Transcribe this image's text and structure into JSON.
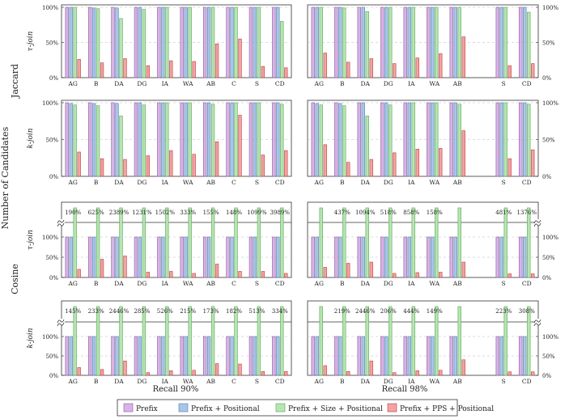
{
  "figure": {
    "ylabel_outer": "Number of Candidates",
    "row_group_labels": [
      "Jaccard",
      "Cosine"
    ],
    "panel_ylabels": [
      "τ-join",
      "k-join",
      "τ-join",
      "k-join"
    ],
    "column_xlabels": [
      "Recall 90%",
      "Recall 98%"
    ]
  },
  "legend": [
    {
      "label": "Prefix",
      "color": "#d9b3e6",
      "stroke": "#8a5a9e"
    },
    {
      "label": "Prefix + Positional",
      "color": "#a9c6e6",
      "stroke": "#4f7fb0"
    },
    {
      "label": "Prefix + Size + Positional",
      "color": "#b6e6b0",
      "stroke": "#5aa35a"
    },
    {
      "label": "Prefix + PPS + Positional",
      "color": "#f2a3a3",
      "stroke": "#c23a3a"
    }
  ],
  "chart_data": [
    {
      "type": "bar",
      "row": "Jaccard",
      "ylabel": "τ-join",
      "column": "Recall 90%",
      "categories": [
        "AG",
        "B",
        "DA",
        "DG",
        "IA",
        "WA",
        "AB",
        "C",
        "S",
        "CD"
      ],
      "ylim": [
        0,
        100
      ],
      "yticks": [
        "0%",
        "50%",
        "100%"
      ],
      "grid": true,
      "series": [
        {
          "name": "Prefix",
          "values": [
            100,
            100,
            100,
            100,
            100,
            100,
            100,
            100,
            100,
            100
          ]
        },
        {
          "name": "Prefix + Positional",
          "values": [
            100,
            99,
            99,
            100,
            100,
            100,
            100,
            100,
            100,
            100
          ]
        },
        {
          "name": "Prefix + Size + Positional",
          "values": [
            100,
            98,
            84,
            97,
            100,
            100,
            100,
            100,
            100,
            80
          ]
        },
        {
          "name": "Prefix + PPS + Positional",
          "values": [
            26,
            21,
            27,
            17,
            24,
            23,
            48,
            55,
            16,
            14
          ]
        }
      ]
    },
    {
      "type": "bar",
      "row": "Jaccard",
      "ylabel": "τ-join",
      "column": "Recall 98%",
      "categories": [
        "AG",
        "B",
        "DA",
        "DG",
        "IA",
        "WA",
        "AB",
        "",
        "S",
        "CD"
      ],
      "ylim": [
        0,
        100
      ],
      "yticks": [
        "0%",
        "50%",
        "100%"
      ],
      "grid": true,
      "series": [
        {
          "name": "Prefix",
          "values": [
            100,
            100,
            100,
            100,
            100,
            100,
            100,
            null,
            100,
            100
          ]
        },
        {
          "name": "Prefix + Positional",
          "values": [
            100,
            100,
            100,
            100,
            100,
            100,
            100,
            null,
            100,
            100
          ]
        },
        {
          "name": "Prefix + Size + Positional",
          "values": [
            100,
            99,
            94,
            100,
            100,
            100,
            100,
            null,
            100,
            93
          ]
        },
        {
          "name": "Prefix + PPS + Positional",
          "values": [
            35,
            22,
            27,
            20,
            28,
            34,
            58,
            null,
            17,
            20
          ]
        }
      ]
    },
    {
      "type": "bar",
      "row": "Jaccard",
      "ylabel": "k-join",
      "column": "Recall 90%",
      "categories": [
        "AG",
        "B",
        "DA",
        "DG",
        "IA",
        "WA",
        "AB",
        "C",
        "S",
        "CD"
      ],
      "ylim": [
        0,
        100
      ],
      "yticks": [
        "0%",
        "50%",
        "100%"
      ],
      "grid": true,
      "series": [
        {
          "name": "Prefix",
          "values": [
            100,
            100,
            100,
            100,
            100,
            100,
            100,
            100,
            100,
            100
          ]
        },
        {
          "name": "Prefix + Positional",
          "values": [
            99,
            99,
            99,
            100,
            100,
            100,
            100,
            100,
            100,
            100
          ]
        },
        {
          "name": "Prefix + Size + Positional",
          "values": [
            97,
            96,
            82,
            97,
            100,
            100,
            98,
            100,
            100,
            98
          ]
        },
        {
          "name": "Prefix + PPS + Positional",
          "values": [
            33,
            24,
            23,
            28,
            35,
            30,
            47,
            83,
            29,
            35
          ]
        }
      ]
    },
    {
      "type": "bar",
      "row": "Jaccard",
      "ylabel": "k-join",
      "column": "Recall 98%",
      "categories": [
        "AG",
        "B",
        "DA",
        "DG",
        "IA",
        "WA",
        "AB",
        "",
        "S",
        "CD"
      ],
      "ylim": [
        0,
        100
      ],
      "yticks": [
        "0%",
        "50%",
        "100%"
      ],
      "grid": true,
      "series": [
        {
          "name": "Prefix",
          "values": [
            100,
            100,
            100,
            100,
            100,
            100,
            100,
            null,
            100,
            100
          ]
        },
        {
          "name": "Prefix + Positional",
          "values": [
            99,
            99,
            100,
            100,
            100,
            100,
            100,
            null,
            100,
            100
          ]
        },
        {
          "name": "Prefix + Size + Positional",
          "values": [
            97,
            96,
            82,
            97,
            100,
            100,
            98,
            null,
            100,
            98
          ]
        },
        {
          "name": "Prefix + PPS + Positional",
          "values": [
            43,
            19,
            23,
            32,
            37,
            38,
            62,
            null,
            24,
            36
          ]
        }
      ]
    },
    {
      "type": "bar",
      "row": "Cosine",
      "ylabel": "τ-join",
      "column": "Recall 90%",
      "categories": [
        "AG",
        "B",
        "DA",
        "DG",
        "IA",
        "WA",
        "AB",
        "C",
        "S",
        "CD"
      ],
      "ylim": [
        0,
        150
      ],
      "yticks": [
        "0%",
        "50%",
        "100%"
      ],
      "grid": true,
      "axis_break": true,
      "overflow_labels": [
        "190%",
        "625%",
        "2389%",
        "1231%",
        "1502%",
        "333%",
        "155%",
        "148%",
        "1099%",
        "3989%"
      ],
      "series": [
        {
          "name": "Prefix",
          "values": [
            100,
            100,
            100,
            100,
            100,
            100,
            100,
            100,
            100,
            100
          ]
        },
        {
          "name": "Prefix + Positional",
          "values": [
            100,
            100,
            100,
            100,
            100,
            100,
            100,
            100,
            100,
            100
          ]
        },
        {
          "name": "Prefix + Size + Positional",
          "values": [
            190,
            625,
            2389,
            1231,
            1502,
            333,
            155,
            148,
            1099,
            3989
          ]
        },
        {
          "name": "Prefix + PPS + Positional",
          "values": [
            20,
            45,
            53,
            13,
            15,
            10,
            33,
            15,
            15,
            10
          ]
        }
      ]
    },
    {
      "type": "bar",
      "row": "Cosine",
      "ylabel": "τ-join",
      "column": "Recall 98%",
      "categories": [
        "AG",
        "B",
        "DA",
        "DG",
        "IA",
        "WA",
        "AB",
        "",
        "S",
        "CD"
      ],
      "ylim": [
        0,
        150
      ],
      "yticks": [
        "0%",
        "50%",
        "100%"
      ],
      "grid": true,
      "axis_break": true,
      "overflow_labels": [
        "",
        "437%",
        "1094%",
        "518%",
        "858%",
        "158%",
        "",
        "",
        "481%",
        "1376%"
      ],
      "series": [
        {
          "name": "Prefix",
          "values": [
            100,
            100,
            100,
            100,
            100,
            100,
            100,
            null,
            100,
            100
          ]
        },
        {
          "name": "Prefix + Positional",
          "values": [
            100,
            100,
            100,
            100,
            100,
            100,
            100,
            null,
            100,
            100
          ]
        },
        {
          "name": "Prefix + Size + Positional",
          "values": [
            107,
            437,
            1094,
            518,
            858,
            158,
            139,
            null,
            481,
            1376
          ]
        },
        {
          "name": "Prefix + PPS + Positional",
          "values": [
            25,
            35,
            38,
            10,
            12,
            13,
            38,
            null,
            9,
            9
          ]
        }
      ]
    },
    {
      "type": "bar",
      "row": "Cosine",
      "ylabel": "k-join",
      "column": "Recall 90%",
      "categories": [
        "AG",
        "B",
        "DA",
        "DG",
        "IA",
        "WA",
        "AB",
        "C",
        "S",
        "CD"
      ],
      "ylim": [
        0,
        150
      ],
      "yticks": [
        "0%",
        "50%",
        "100%"
      ],
      "grid": true,
      "axis_break": true,
      "overflow_labels": [
        "145%",
        "233%",
        "2446%",
        "285%",
        "526%",
        "215%",
        "173%",
        "182%",
        "513%",
        "334%"
      ],
      "series": [
        {
          "name": "Prefix",
          "values": [
            100,
            100,
            100,
            100,
            100,
            100,
            100,
            100,
            100,
            100
          ]
        },
        {
          "name": "Prefix + Positional",
          "values": [
            100,
            100,
            100,
            100,
            100,
            100,
            100,
            100,
            100,
            100
          ]
        },
        {
          "name": "Prefix + Size + Positional",
          "values": [
            145,
            233,
            2446,
            285,
            526,
            215,
            173,
            182,
            513,
            334
          ]
        },
        {
          "name": "Prefix + PPS + Positional",
          "values": [
            20,
            15,
            37,
            7,
            12,
            13,
            30,
            29,
            10,
            10
          ]
        }
      ]
    },
    {
      "type": "bar",
      "row": "Cosine",
      "ylabel": "k-join",
      "column": "Recall 98%",
      "categories": [
        "AG",
        "B",
        "DA",
        "DG",
        "IA",
        "WA",
        "AB",
        "",
        "S",
        "CD"
      ],
      "ylim": [
        0,
        150
      ],
      "yticks": [
        "0%",
        "50%",
        "100%"
      ],
      "grid": true,
      "axis_break": true,
      "overflow_labels": [
        "",
        "219%",
        "2446%",
        "206%",
        "444%",
        "149%",
        "",
        "",
        "223%",
        "308%"
      ],
      "series": [
        {
          "name": "Prefix",
          "values": [
            100,
            100,
            100,
            100,
            100,
            100,
            100,
            null,
            100,
            100
          ]
        },
        {
          "name": "Prefix + Positional",
          "values": [
            100,
            100,
            100,
            100,
            100,
            100,
            100,
            null,
            100,
            100
          ]
        },
        {
          "name": "Prefix + Size + Positional",
          "values": [
            105,
            219,
            2446,
            206,
            444,
            149,
            123,
            null,
            223,
            308
          ]
        },
        {
          "name": "Prefix + PPS + Positional",
          "values": [
            25,
            10,
            37,
            7,
            12,
            13,
            40,
            null,
            9,
            9
          ]
        }
      ]
    }
  ]
}
